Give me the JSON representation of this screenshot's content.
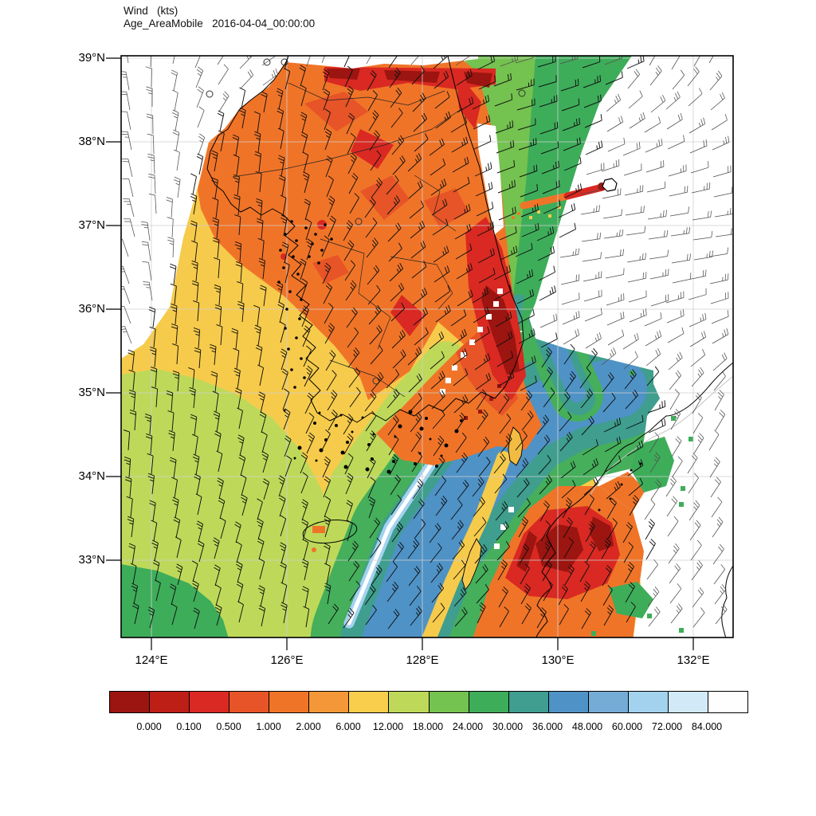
{
  "title": {
    "line1": "Wind   (kts)",
    "line2": "Age_AreaMobile   2016-04-04_00:00:00"
  },
  "chart_data": {
    "type": "heatmap",
    "title": "Wind (kts)",
    "subtitle": "Age_AreaMobile 2016-04-04_00:00:00",
    "description": "Filled contour map of age field (colorbar 0-84) over the Korean peninsula and surrounding seas with wind barbs, coastlines, province boundaries and faint lat-lon gridlines",
    "x_axis": {
      "ticks": [
        "124°E",
        "126°E",
        "128°E",
        "130°E",
        "132°E"
      ],
      "range_deg_east": [
        123.6,
        132.6
      ]
    },
    "y_axis": {
      "ticks": [
        "39°N",
        "38°N",
        "37°N",
        "36°N",
        "35°N",
        "34°N",
        "33°N"
      ],
      "range_deg_north": [
        32.1,
        39.1
      ]
    },
    "colorbar": {
      "labels": [
        "0.000",
        "0.100",
        "0.500",
        "1.000",
        "2.000",
        "6.000",
        "12.000",
        "18.000",
        "24.000",
        "30.000",
        "36.000",
        "48.000",
        "60.000",
        "72.000",
        "84.000"
      ],
      "colors": [
        "#9C1510",
        "#BD1E16",
        "#D92922",
        "#E65427",
        "#F07428",
        "#F39738",
        "#F9CE4D",
        "#BED959",
        "#74C24F",
        "#3EAD5A",
        "#3F9E90",
        "#4F92C6",
        "#74ACD6",
        "#A2D2EE",
        "#D2E9F7",
        "#FEFEFE"
      ],
      "position": "bottom"
    },
    "regions": [
      "white (blank) field over northwest Yellow Sea corner and most of the East Sea / Sea of Japan",
      "dark red band along the top (north) edge of the data area",
      "orange over northern Korea with red maxima along the east coast near Pohang",
      "yellow over central/southern Korea and the Yellow Sea",
      "yellow-green and green over the far southwest sea, dark green in bottom-left corner",
      "green wedge descending from the top edge east of the peninsula",
      "blue diagonal jet band SW-NE through the Korea Strait flanked by teal and green, with white/light-blue streak on its NW edge",
      "orange streak with red tip pointing NE to Ulleungdo island",
      "red / dark-red maximum over Tsushima-Kyushu area in the southeast",
      "scattered green patches along the Honshu coast"
    ],
    "overlays": [
      "wind barbs",
      "calm-wind circles",
      "coastlines",
      "province boundaries",
      "lat-lon gridlines"
    ]
  }
}
